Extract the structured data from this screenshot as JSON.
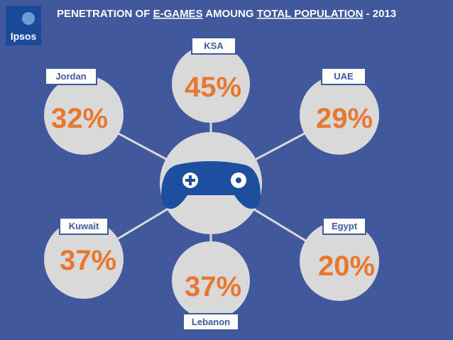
{
  "header": {
    "logo": "Ipsos",
    "title_parts": [
      "PENETRATION OF ",
      "E-GAMES",
      " AMOUNG ",
      "TOTAL POPULATION",
      " - 2013"
    ]
  },
  "nodes": [
    {
      "label": "KSA",
      "value": "45%"
    },
    {
      "label": "Jordan",
      "value": "32%"
    },
    {
      "label": "UAE",
      "value": "29%"
    },
    {
      "label": "Kuwait",
      "value": "37%"
    },
    {
      "label": "Egypt",
      "value": "20%"
    },
    {
      "label": "Lebanon",
      "value": "37%"
    }
  ]
}
